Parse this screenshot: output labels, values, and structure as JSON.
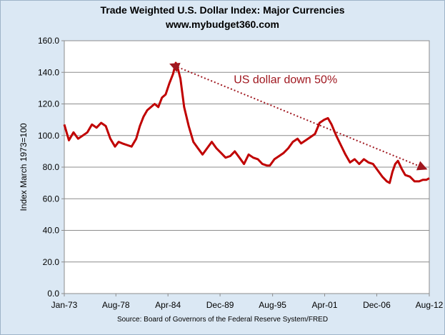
{
  "chart_data": {
    "type": "line",
    "title": "Trade Weighted U.S. Dollar Index: Major Currencies",
    "subtitle": "www.mybudget360.com",
    "ylabel": "Index March 1973=100",
    "xlabel": "",
    "source": "Source: Board of Governors of the Federal Reserve System/FRED",
    "ylim": [
      0,
      160
    ],
    "yticks": [
      "0.0",
      "20.0",
      "40.0",
      "60.0",
      "80.0",
      "100.0",
      "120.0",
      "140.0",
      "160.0"
    ],
    "xlim": [
      1973.0,
      2012.6
    ],
    "xtick_labels": [
      "Jan-73",
      "Aug-78",
      "Apr-84",
      "Dec-89",
      "Aug-95",
      "Apr-01",
      "Dec-06",
      "Aug-12"
    ],
    "xtick_years": [
      1973.0,
      1978.6,
      1984.25,
      1989.9,
      1995.6,
      2001.25,
      2006.9,
      2012.6
    ],
    "grid": true,
    "line_color": "#c00000",
    "x": [
      1973.0,
      1973.5,
      1974.0,
      1974.5,
      1975.0,
      1975.5,
      1976.0,
      1976.5,
      1977.0,
      1977.5,
      1978.0,
      1978.5,
      1978.9,
      1979.3,
      1979.8,
      1980.3,
      1980.8,
      1981.2,
      1981.6,
      1982.0,
      1982.4,
      1982.8,
      1983.2,
      1983.6,
      1984.0,
      1984.4,
      1984.8,
      1985.1,
      1985.3,
      1985.6,
      1986.0,
      1986.5,
      1987.0,
      1987.5,
      1988.0,
      1988.5,
      1989.0,
      1989.5,
      1990.0,
      1990.5,
      1991.0,
      1991.5,
      1992.0,
      1992.5,
      1993.0,
      1993.5,
      1994.0,
      1994.5,
      1995.0,
      1995.3,
      1995.8,
      1996.3,
      1996.8,
      1997.3,
      1997.8,
      1998.3,
      1998.7,
      1999.2,
      1999.7,
      2000.2,
      2000.7,
      2001.2,
      2001.6,
      2002.0,
      2002.5,
      2003.0,
      2003.5,
      2004.0,
      2004.5,
      2005.0,
      2005.5,
      2006.0,
      2006.5,
      2007.0,
      2007.5,
      2008.0,
      2008.3,
      2008.6,
      2008.9,
      2009.2,
      2009.6,
      2010.0,
      2010.5,
      2011.0,
      2011.5,
      2011.9,
      2012.3,
      2012.6
    ],
    "values": [
      107,
      97,
      102,
      98,
      100,
      102,
      107,
      105,
      108,
      106,
      98,
      93,
      96,
      95,
      94,
      93,
      98,
      106,
      112,
      116,
      118,
      120,
      118,
      124,
      126,
      133,
      139,
      146,
      143,
      136,
      118,
      106,
      96,
      92,
      88,
      92,
      96,
      92,
      89,
      86,
      87,
      90,
      86,
      82,
      88,
      86,
      85,
      82,
      81,
      81,
      85,
      87,
      89,
      92,
      96,
      98,
      95,
      97,
      99,
      101,
      108,
      110,
      111,
      107,
      100,
      94,
      88,
      83,
      85,
      82,
      85,
      83,
      82,
      78,
      74,
      71,
      70,
      77,
      82,
      84,
      79,
      75,
      74,
      71,
      71,
      72,
      72,
      73
    ],
    "annotation": {
      "text": "US dollar down 50%",
      "from": {
        "x": 1984.6,
        "y": 145
      },
      "to": {
        "x": 2012.2,
        "y": 79
      },
      "label_at": {
        "x": 1997.0,
        "y": 133
      }
    }
  }
}
